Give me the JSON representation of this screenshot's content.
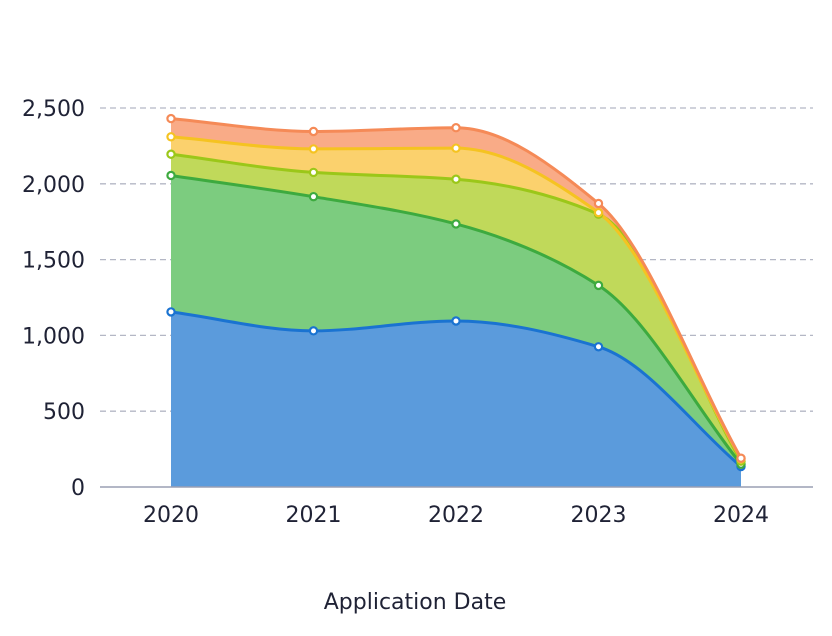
{
  "chart_data": {
    "type": "area",
    "stacked": true,
    "smooth": true,
    "x": [
      "2020",
      "2021",
      "2022",
      "2023",
      "2024"
    ],
    "xlabel": "Application Date",
    "ylabel": "",
    "ylim": [
      0,
      2500
    ],
    "yticks": [
      0,
      500,
      1000,
      1500,
      2000,
      2500
    ],
    "ytick_labels": [
      "0",
      "500",
      "1,000",
      "1,500",
      "2,000",
      "2,500"
    ],
    "grid": "horizontal-dashed",
    "legend": "none",
    "series": [
      {
        "color": "#1a73d1",
        "fill": "#5b9bdc",
        "cumulative": [
          1155,
          1030,
          1095,
          925,
          135
        ]
      },
      {
        "color": "#3daa3f",
        "fill": "#7ccc7f",
        "cumulative": [
          2055,
          1915,
          1735,
          1330,
          150
        ]
      },
      {
        "color": "#9bc719",
        "fill": "#c0d95a",
        "cumulative": [
          2195,
          2075,
          2030,
          1800,
          170
        ]
      },
      {
        "color": "#f5c321",
        "fill": "#fbd16d",
        "cumulative": [
          2310,
          2230,
          2235,
          1810,
          185
        ]
      },
      {
        "color": "#f58a57",
        "fill": "#f9ab87",
        "cumulative": [
          2430,
          2345,
          2370,
          1870,
          190
        ]
      }
    ]
  }
}
